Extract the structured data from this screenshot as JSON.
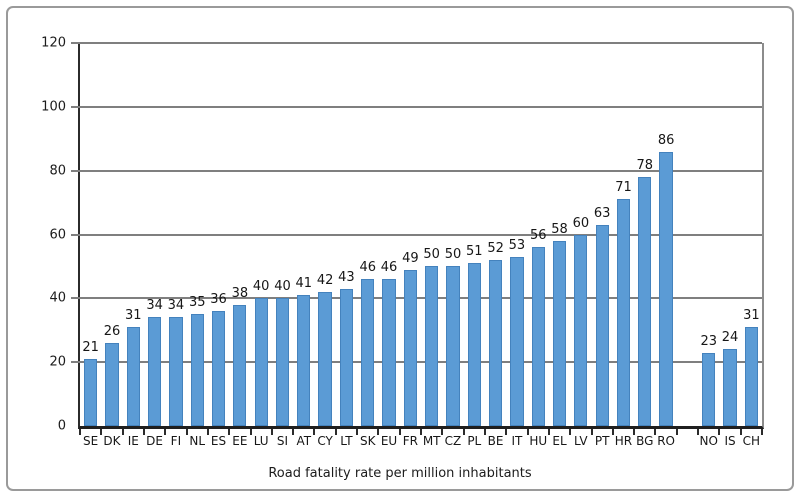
{
  "frame": {
    "border_color": "#9a9a9a"
  },
  "chart_data": {
    "type": "bar",
    "title": "Road fatality rate per million inhabitants",
    "categories": [
      "SE",
      "DK",
      "IE",
      "DE",
      "FI",
      "NL",
      "ES",
      "EE",
      "LU",
      "SI",
      "AT",
      "CY",
      "LT",
      "SK",
      "EU",
      "FR",
      "MT",
      "CZ",
      "PL",
      "BE",
      "IT",
      "HU",
      "EL",
      "LV",
      "PT",
      "HR",
      "BG",
      "RO",
      "NO",
      "IS",
      "CH"
    ],
    "values": [
      21,
      26,
      31,
      34,
      34,
      35,
      36,
      38,
      40,
      40,
      41,
      42,
      43,
      46,
      46,
      49,
      50,
      50,
      51,
      52,
      53,
      56,
      58,
      60,
      63,
      71,
      78,
      86,
      23,
      24,
      31
    ],
    "gap_after_index": 27,
    "xlabel": "Road fatality rate per million inhabitants",
    "ylabel": "",
    "ylim": [
      0,
      120
    ],
    "yticks": [
      0,
      20,
      40,
      60,
      80,
      100,
      120
    ],
    "grid": true,
    "legend": "none",
    "bar_color": "#5b9bd5",
    "gridline_color": "#7f7f7f",
    "axis_color": "#2b2b2b",
    "data_labels": true
  }
}
